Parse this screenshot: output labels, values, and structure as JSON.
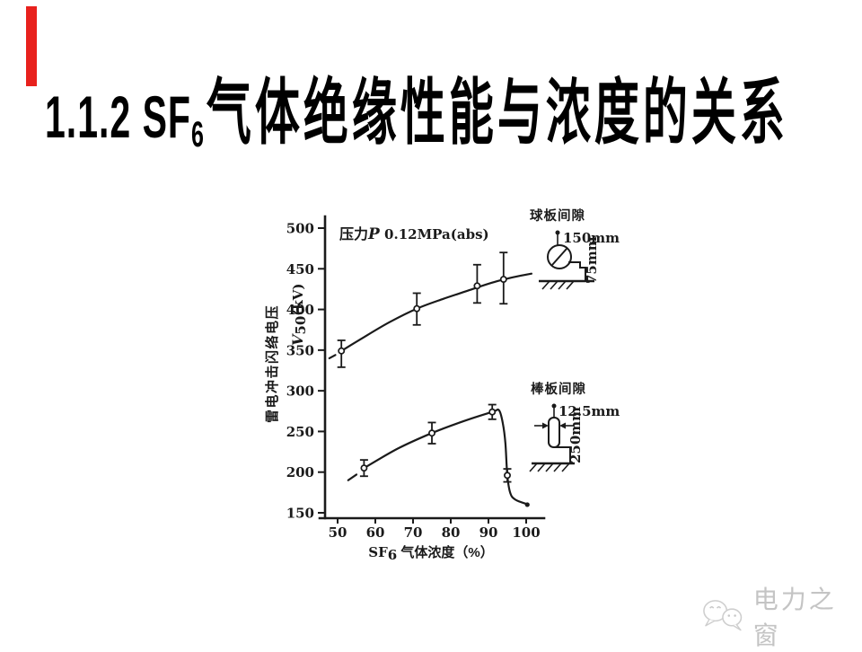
{
  "slide": {
    "background": "#ffffff",
    "accent_bar_color": "#e8211d"
  },
  "title": {
    "text": "1.1.2 SF6气体绝缘性能与浓度的关系",
    "prefix": "1.1.2 SF",
    "subscript": "6",
    "suffix": "气体绝缘性能与浓度的关系"
  },
  "watermark": {
    "icon": "wechat-icon",
    "label": "电力之窗",
    "color": "#c4c4c4"
  },
  "chart_data": {
    "type": "line",
    "annotation": {
      "prefix": "压力",
      "italic": "P",
      "suffix": " 0.12MPa(abs)"
    },
    "xlabel": {
      "prefix": "SF",
      "sub": "6",
      "suffix": " 气体浓度（%）"
    },
    "ylabel_line1": "雷电冲击闪络电压",
    "ylabel_line2": {
      "prefix": "V",
      "sub": "50",
      "suffix": "(kV)"
    },
    "xticks": [
      50,
      60,
      70,
      80,
      90,
      100
    ],
    "yticks": [
      500,
      450,
      400,
      350,
      300,
      250,
      200,
      150
    ],
    "xlim": [
      46,
      105
    ],
    "ylim": [
      140,
      510
    ],
    "series": [
      {
        "name": "球板间隙",
        "diagram": {
          "label": "球板间隙",
          "dim1": "150mm",
          "dim2": "75mm"
        },
        "points": [
          {
            "x": 51,
            "v": 349,
            "lo": 329,
            "hi": 362
          },
          {
            "x": 71,
            "v": 401,
            "lo": 381,
            "hi": 420
          },
          {
            "x": 87,
            "v": 429,
            "lo": 408,
            "hi": 455
          },
          {
            "x": 94,
            "v": 437,
            "lo": 407,
            "hi": 470
          }
        ],
        "curve": [
          [
            51,
            349
          ],
          [
            57,
            366
          ],
          [
            64,
            385
          ],
          [
            71,
            401
          ],
          [
            78,
            413
          ],
          [
            84.5,
            423
          ],
          [
            91,
            433
          ],
          [
            97,
            440
          ],
          [
            101.4,
            444
          ]
        ],
        "lead_dash": [
          [
            47.8,
            340
          ],
          [
            49.4,
            344
          ]
        ]
      },
      {
        "name": "棒板间隙",
        "diagram": {
          "label": "棒板间隙",
          "dim1": "12.5mm",
          "dim2": "250mm"
        },
        "points": [
          {
            "x": 57,
            "v": 205,
            "lo": 195,
            "hi": 215
          },
          {
            "x": 75,
            "v": 248,
            "lo": 235,
            "hi": 261
          },
          {
            "x": 91,
            "v": 274,
            "lo": 265,
            "hi": 283
          },
          {
            "x": 95,
            "v": 196,
            "lo": 188,
            "hi": 204
          }
        ],
        "curve": [
          [
            57,
            205
          ],
          [
            66,
            229
          ],
          [
            75,
            248
          ],
          [
            83,
            262
          ],
          [
            91,
            274
          ],
          [
            92.8,
            276
          ],
          [
            93.8,
            260
          ],
          [
            94.5,
            235
          ],
          [
            95,
            196
          ],
          [
            95.8,
            174
          ],
          [
            97.2,
            166
          ],
          [
            100,
            161
          ]
        ],
        "lead_dash": [
          [
            52.8,
            190
          ],
          [
            55,
            197
          ]
        ],
        "end_dot": [
          100.3,
          160
        ]
      }
    ]
  }
}
